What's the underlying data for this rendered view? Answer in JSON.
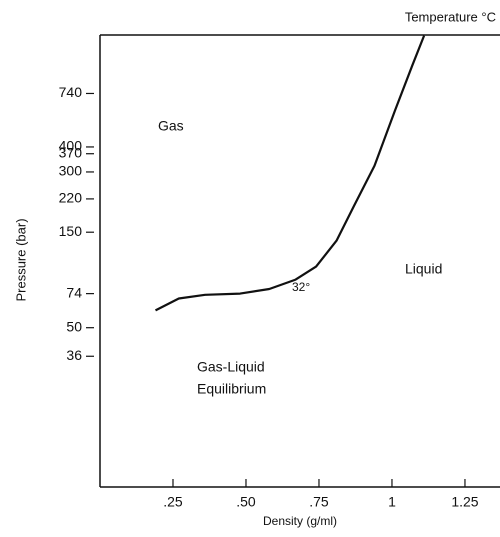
{
  "chart_data": {
    "type": "line",
    "title": "Temperature °C",
    "x_label": "Density (g/ml)",
    "y_label": "Pressure (bar)",
    "annotations": [
      "Gas",
      "Liquid",
      "Gas-Liquid",
      "Equilibrium",
      "32°"
    ],
    "x": [
      0.19,
      0.27,
      0.36,
      0.48,
      0.58,
      0.67,
      0.74,
      0.81,
      0.87,
      0.94,
      1.01,
      1.07,
      1.11
    ],
    "values": [
      61,
      70,
      73,
      74,
      78,
      87,
      101,
      136,
      203,
      322,
      607,
      1025,
      1440
    ],
    "color": "#111111",
    "xlim": [
      0,
      1.37
    ],
    "ylim": [
      8,
      1450
    ],
    "yscale": "log",
    "xticks": [
      {
        "value": 0.25,
        "label": ".25"
      },
      {
        "value": 0.5,
        "label": ".50"
      },
      {
        "value": 0.75,
        "label": ".75"
      },
      1.0,
      1.25
    ],
    "yticks": [
      36,
      50,
      74,
      150,
      220,
      300,
      370,
      400,
      740
    ],
    "grid": false
  }
}
